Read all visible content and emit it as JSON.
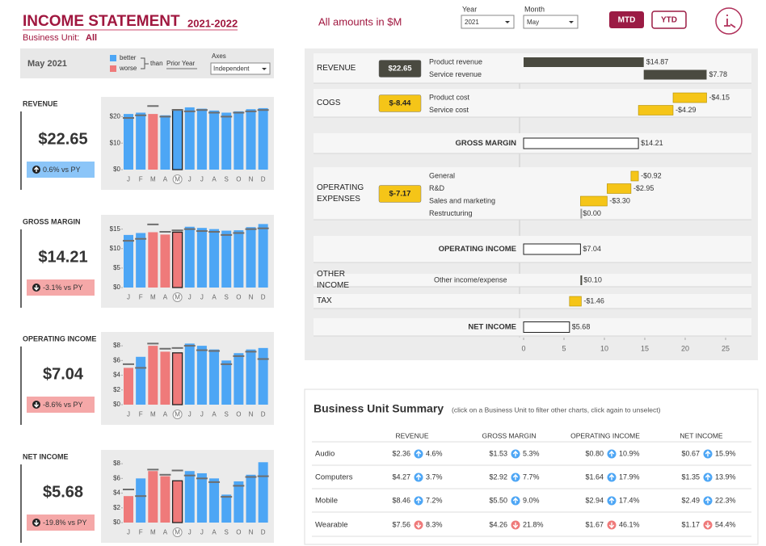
{
  "header": {
    "title": "INCOME STATEMENT",
    "years": "2021-2022",
    "unit_label": "Business Unit:",
    "unit": "All",
    "note": "All amounts in $M",
    "year_label": "Year",
    "year": "2021",
    "month_label": "Month",
    "month": "May",
    "buttons": [
      "MTD",
      "YTD"
    ]
  },
  "legend": {
    "period": "May 2021",
    "better": {
      "label": "better",
      "color": "#4da6f5"
    },
    "worse": {
      "label": "worse",
      "color": "#ef7a7a"
    },
    "than": "than",
    "prior": {
      "label": "Prior Year",
      "color": "#6e6e6e"
    },
    "axes_label": "Axes",
    "axes": "Independent"
  },
  "chart_data": [
    {
      "type": "bar",
      "title": "REVENUE",
      "kpi": "$22.65",
      "delta": "0.6% vs PY",
      "trend": "up",
      "categories": [
        "J",
        "F",
        "M",
        "A",
        "M",
        "J",
        "J",
        "A",
        "S",
        "O",
        "N",
        "D"
      ],
      "values": [
        21,
        21.5,
        21,
        20.5,
        22.65,
        23.5,
        23,
        22.3,
        21.5,
        22,
        22.8,
        23.2
      ],
      "prior_values": [
        19.5,
        20.5,
        24,
        20,
        22.51,
        22,
        22.5,
        21.5,
        20,
        21.5,
        22,
        22.5
      ],
      "ylim": [
        0,
        25
      ],
      "yticks": [
        {
          "value": 0,
          "label": "$0"
        },
        {
          "value": 10,
          "label": "$10"
        },
        {
          "value": 20,
          "label": "$20"
        }
      ]
    },
    {
      "type": "bar",
      "title": "GROSS MARGIN",
      "kpi": "$14.21",
      "delta": "-3.1% vs PY",
      "trend": "down",
      "categories": [
        "J",
        "F",
        "M",
        "A",
        "M",
        "J",
        "J",
        "A",
        "S",
        "O",
        "N",
        "D"
      ],
      "values": [
        13.5,
        14,
        14.2,
        13.6,
        14.21,
        15.6,
        15.3,
        15,
        14.6,
        14.7,
        15.5,
        16.3
      ],
      "prior_values": [
        12,
        12.5,
        16.2,
        14.3,
        14.67,
        15,
        14.5,
        14.3,
        13.5,
        14,
        15,
        15.2
      ],
      "ylim": [
        0,
        17
      ],
      "yticks": [
        {
          "value": 0,
          "label": "$0"
        },
        {
          "value": 5,
          "label": "$5"
        },
        {
          "value": 10,
          "label": "$10"
        },
        {
          "value": 15,
          "label": "$15"
        }
      ]
    },
    {
      "type": "bar",
      "title": "OPERATING INCOME",
      "kpi": "$7.04",
      "delta": "-8.6% vs PY",
      "trend": "down",
      "categories": [
        "J",
        "F",
        "M",
        "A",
        "M",
        "J",
        "J",
        "A",
        "S",
        "O",
        "N",
        "D"
      ],
      "values": [
        5,
        6.5,
        8,
        7.2,
        7.04,
        8.3,
        8,
        7.5,
        6,
        7,
        7.5,
        7.7
      ],
      "prior_values": [
        5.5,
        5,
        8.3,
        7.6,
        7.7,
        8,
        7.4,
        7.3,
        5.5,
        6.6,
        7.2,
        6.2
      ],
      "ylim": [
        0,
        9
      ],
      "yticks": [
        {
          "value": 0,
          "label": "$0"
        },
        {
          "value": 2,
          "label": "$2"
        },
        {
          "value": 4,
          "label": "$4"
        },
        {
          "value": 6,
          "label": "$6"
        },
        {
          "value": 8,
          "label": "$8"
        }
      ]
    },
    {
      "type": "bar",
      "title": "NET INCOME",
      "kpi": "$5.68",
      "delta": "-19.8% vs PY",
      "trend": "down",
      "categories": [
        "J",
        "F",
        "M",
        "A",
        "M",
        "J",
        "J",
        "A",
        "S",
        "O",
        "N",
        "D"
      ],
      "values": [
        3.6,
        6,
        7,
        6.3,
        5.68,
        7,
        6.7,
        6,
        3.8,
        5.6,
        6.5,
        8.2
      ],
      "prior_values": [
        4.5,
        3.6,
        7.2,
        6.5,
        7.08,
        6.4,
        6,
        5.5,
        3.5,
        5,
        6.2,
        6.3
      ],
      "ylim": [
        0,
        9
      ],
      "yticks": [
        {
          "value": 0,
          "label": "$0"
        },
        {
          "value": 2,
          "label": "$2"
        },
        {
          "value": 4,
          "label": "$4"
        },
        {
          "value": 6,
          "label": "$6"
        },
        {
          "value": 8,
          "label": "$8"
        }
      ]
    },
    {
      "type": "waterfall",
      "xlim": [
        -0.5,
        26.5
      ],
      "xticks": [
        0,
        5,
        10,
        15,
        20,
        25
      ],
      "positive_color": "#4a4a40",
      "negative_color": "#f5c518",
      "total_color": "#ffffff",
      "sections": [
        {
          "name": "REVENUE",
          "value": 22.65,
          "value_label": "$22.65",
          "items": [
            {
              "name": "Product revenue",
              "value": 14.87,
              "value_label": "$14.87"
            },
            {
              "name": "Service revenue",
              "value": 7.78,
              "value_label": "$7.78"
            }
          ]
        },
        {
          "name": "COGS",
          "value": -8.44,
          "value_label": "$-8.44",
          "items": [
            {
              "name": "Product cost",
              "value": -4.15,
              "value_label": "-$4.15"
            },
            {
              "name": "Service cost",
              "value": -4.29,
              "value_label": "-$4.29"
            }
          ]
        },
        {
          "name": "GROSS MARGIN",
          "total": true,
          "value": 14.21,
          "value_label": "$14.21"
        },
        {
          "name": "OPERATING EXPENSES",
          "value": -7.17,
          "value_label": "$-7.17",
          "items": [
            {
              "name": "General",
              "value": -0.92,
              "value_label": "-$0.92"
            },
            {
              "name": "R&D",
              "value": -2.95,
              "value_label": "-$2.95"
            },
            {
              "name": "Sales and marketing",
              "value": -3.3,
              "value_label": "-$3.30"
            },
            {
              "name": "Restructuring",
              "value": 0,
              "value_label": "$0.00"
            }
          ]
        },
        {
          "name": "OPERATING INCOME",
          "total": true,
          "value": 7.04,
          "value_label": "$7.04"
        },
        {
          "name": "OTHER INCOME",
          "items": [
            {
              "name": "Other income/expense",
              "value": 0.1,
              "value_label": "$0.10"
            }
          ]
        },
        {
          "name": "TAX",
          "items": [
            {
              "value": -1.46,
              "value_label": "-$1.46"
            }
          ]
        },
        {
          "name": "NET INCOME",
          "total": true,
          "value": 5.68,
          "value_label": "$5.68"
        }
      ]
    }
  ],
  "summary": {
    "title": "Business Unit Summary",
    "hint": "(click on a Business Unit to filter other charts, click again to unselect)",
    "columns": [
      "REVENUE",
      "GROSS MARGIN",
      "OPERATING INCOME",
      "NET INCOME"
    ],
    "rows": [
      {
        "name": "Audio",
        "cells": [
          {
            "value": "$2.36",
            "change": "4.6%",
            "trend": "up"
          },
          {
            "value": "$1.53",
            "change": "5.3%",
            "trend": "up"
          },
          {
            "value": "$0.80",
            "change": "10.9%",
            "trend": "up"
          },
          {
            "value": "$0.67",
            "change": "15.9%",
            "trend": "up"
          }
        ]
      },
      {
        "name": "Computers",
        "cells": [
          {
            "value": "$4.27",
            "change": "3.7%",
            "trend": "up"
          },
          {
            "value": "$2.92",
            "change": "7.7%",
            "trend": "up"
          },
          {
            "value": "$1.64",
            "change": "17.9%",
            "trend": "up"
          },
          {
            "value": "$1.35",
            "change": "13.9%",
            "trend": "up"
          }
        ]
      },
      {
        "name": "Mobile",
        "cells": [
          {
            "value": "$8.46",
            "change": "7.2%",
            "trend": "up"
          },
          {
            "value": "$5.50",
            "change": "9.0%",
            "trend": "up"
          },
          {
            "value": "$2.94",
            "change": "17.4%",
            "trend": "up"
          },
          {
            "value": "$2.49",
            "change": "22.3%",
            "trend": "up"
          }
        ]
      },
      {
        "name": "Wearable",
        "cells": [
          {
            "value": "$7.56",
            "change": "8.3%",
            "trend": "down"
          },
          {
            "value": "$4.26",
            "change": "21.8%",
            "trend": "down"
          },
          {
            "value": "$1.67",
            "change": "46.1%",
            "trend": "down"
          },
          {
            "value": "$1.17",
            "change": "54.4%",
            "trend": "down"
          }
        ]
      }
    ]
  }
}
